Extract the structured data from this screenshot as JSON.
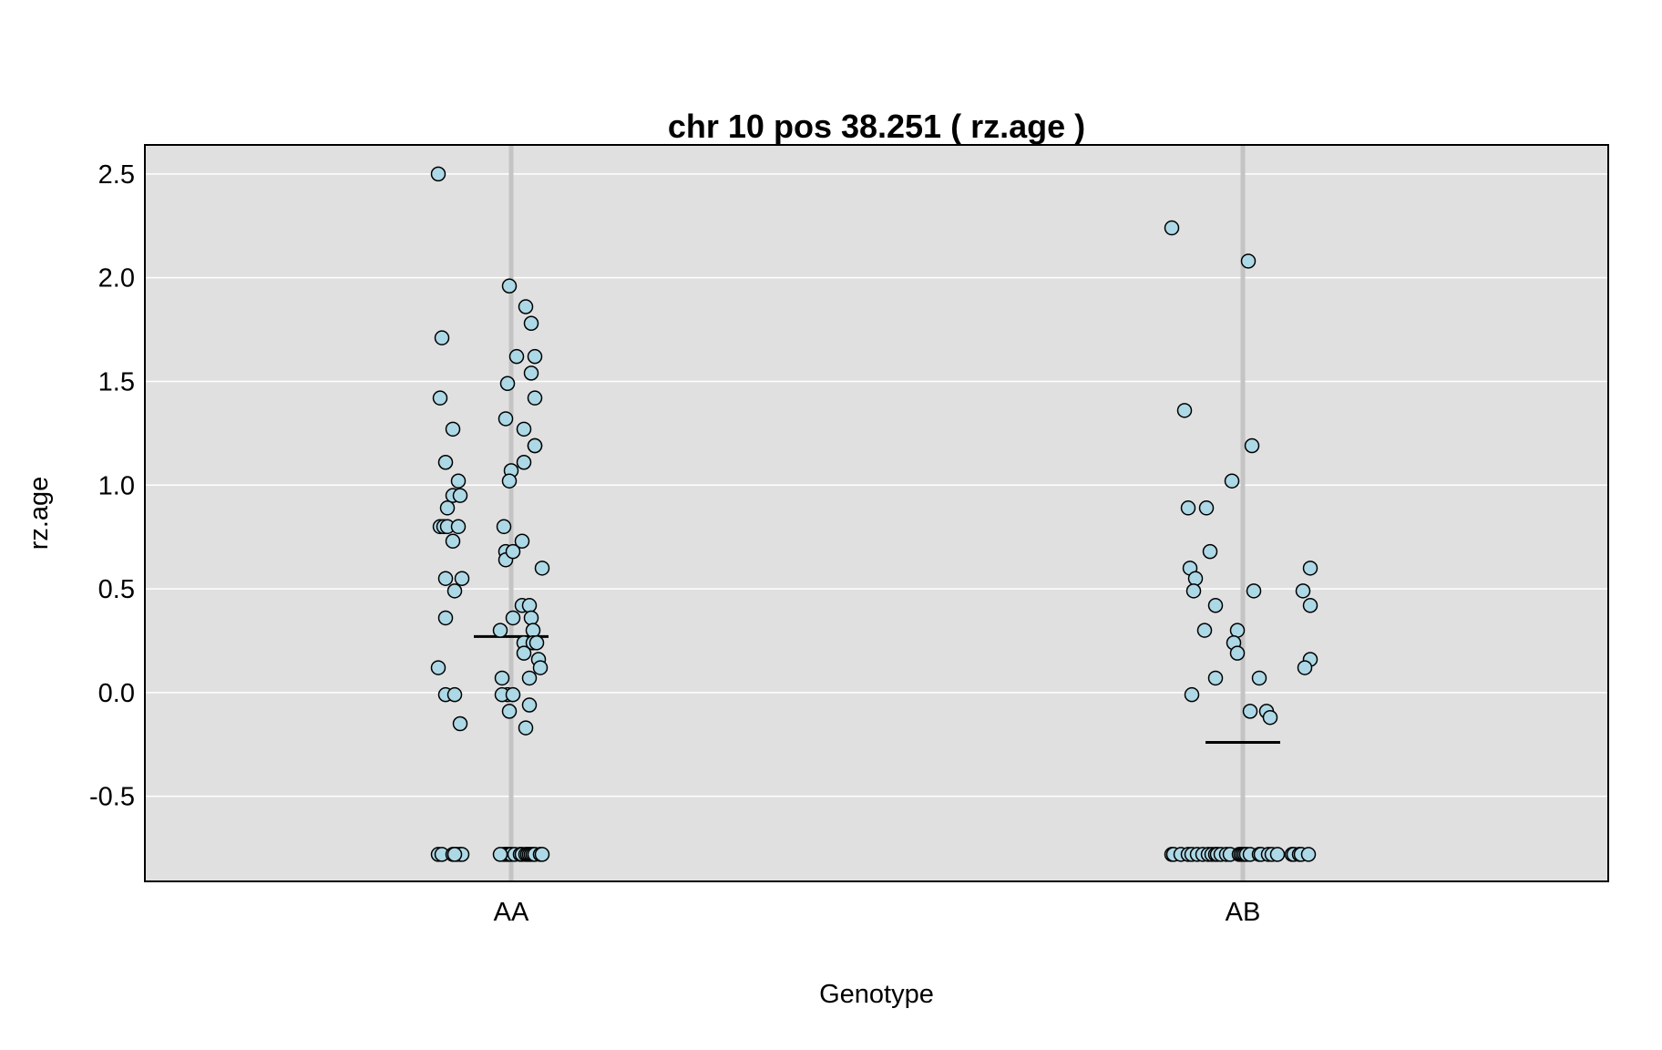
{
  "chart_data": {
    "type": "scatter",
    "title": "chr 10 pos 38.251 ( rz.age )",
    "xlabel": "Genotype",
    "ylabel": "rz.age",
    "categories": [
      "AA",
      "AB"
    ],
    "y_ticks": [
      -0.5,
      0.0,
      0.5,
      1.0,
      1.5,
      2.0,
      2.5
    ],
    "y_tick_labels": [
      "-0.5",
      "0.0",
      "0.5",
      "1.0",
      "1.5",
      "2.0",
      "2.5"
    ],
    "ylim": [
      -0.91,
      2.64
    ],
    "grid": true,
    "background": "#e0e0e0",
    "point_fill": "#add8e6",
    "point_stroke": "#000000",
    "groups": [
      {
        "category": "AA",
        "median": 0.27,
        "points": [
          {
            "x": -0.4,
            "y": 2.5
          },
          {
            "x": -0.38,
            "y": 1.71
          },
          {
            "x": -0.39,
            "y": 1.42
          },
          {
            "x": -0.32,
            "y": 1.27
          },
          {
            "x": -0.36,
            "y": 1.11
          },
          {
            "x": -0.29,
            "y": 1.02
          },
          {
            "x": -0.32,
            "y": 0.95
          },
          {
            "x": -0.28,
            "y": 0.95
          },
          {
            "x": -0.35,
            "y": 0.89
          },
          {
            "x": -0.39,
            "y": 0.8
          },
          {
            "x": -0.37,
            "y": 0.8
          },
          {
            "x": -0.35,
            "y": 0.8
          },
          {
            "x": -0.29,
            "y": 0.8
          },
          {
            "x": -0.32,
            "y": 0.73
          },
          {
            "x": -0.36,
            "y": 0.55
          },
          {
            "x": -0.27,
            "y": 0.55
          },
          {
            "x": -0.31,
            "y": 0.49
          },
          {
            "x": -0.36,
            "y": 0.36
          },
          {
            "x": -0.4,
            "y": 0.12
          },
          {
            "x": -0.36,
            "y": -0.01
          },
          {
            "x": -0.31,
            "y": -0.01
          },
          {
            "x": -0.28,
            "y": -0.15
          },
          {
            "x": -0.01,
            "y": 1.96
          },
          {
            "x": 0.03,
            "y": 1.62
          },
          {
            "x": -0.02,
            "y": 1.49
          },
          {
            "x": -0.03,
            "y": 1.32
          },
          {
            "x": 0.0,
            "y": 1.07
          },
          {
            "x": -0.01,
            "y": 1.02
          },
          {
            "x": -0.04,
            "y": 0.8
          },
          {
            "x": -0.03,
            "y": 0.68
          },
          {
            "x": -0.03,
            "y": 0.64
          },
          {
            "x": 0.01,
            "y": 0.68
          },
          {
            "x": -0.06,
            "y": 0.3
          },
          {
            "x": 0.01,
            "y": 0.36
          },
          {
            "x": -0.05,
            "y": 0.07
          },
          {
            "x": -0.02,
            "y": -0.01
          },
          {
            "x": -0.05,
            "y": -0.01
          },
          {
            "x": 0.01,
            "y": -0.01
          },
          {
            "x": -0.01,
            "y": -0.09
          },
          {
            "x": 0.08,
            "y": 1.86
          },
          {
            "x": 0.07,
            "y": 1.27
          },
          {
            "x": 0.07,
            "y": 1.11
          },
          {
            "x": 0.06,
            "y": 0.73
          },
          {
            "x": 0.06,
            "y": 0.42
          },
          {
            "x": 0.07,
            "y": 0.24
          },
          {
            "x": 0.07,
            "y": 0.19
          },
          {
            "x": 0.08,
            "y": -0.17
          },
          {
            "x": 0.11,
            "y": 1.78
          },
          {
            "x": 0.13,
            "y": 1.62
          },
          {
            "x": 0.11,
            "y": 1.54
          },
          {
            "x": 0.13,
            "y": 1.42
          },
          {
            "x": 0.13,
            "y": 1.19
          },
          {
            "x": 0.13,
            "y": 1.19
          },
          {
            "x": 0.1,
            "y": 0.42
          },
          {
            "x": 0.11,
            "y": 0.36
          },
          {
            "x": 0.12,
            "y": 0.3
          },
          {
            "x": 0.12,
            "y": 0.24
          },
          {
            "x": 0.14,
            "y": 0.24
          },
          {
            "x": 0.15,
            "y": 0.16
          },
          {
            "x": 0.17,
            "y": 0.6
          },
          {
            "x": 0.16,
            "y": 0.12
          },
          {
            "x": 0.1,
            "y": 0.07
          },
          {
            "x": 0.1,
            "y": -0.06
          },
          {
            "x": -0.4,
            "y": -0.78
          },
          {
            "x": -0.38,
            "y": -0.78
          },
          {
            "x": -0.32,
            "y": -0.78
          },
          {
            "x": -0.3,
            "y": -0.78
          },
          {
            "x": -0.28,
            "y": -0.78
          },
          {
            "x": -0.27,
            "y": -0.78
          },
          {
            "x": -0.04,
            "y": -0.78
          },
          {
            "x": -0.03,
            "y": -0.78
          },
          {
            "x": -0.02,
            "y": -0.78
          },
          {
            "x": -0.01,
            "y": -0.78
          },
          {
            "x": 0.0,
            "y": -0.78
          },
          {
            "x": 0.02,
            "y": -0.78
          },
          {
            "x": 0.05,
            "y": -0.78
          },
          {
            "x": 0.06,
            "y": -0.78
          },
          {
            "x": 0.08,
            "y": -0.78
          },
          {
            "x": 0.09,
            "y": -0.78
          },
          {
            "x": 0.1,
            "y": -0.78
          },
          {
            "x": 0.11,
            "y": -0.78
          },
          {
            "x": 0.12,
            "y": -0.78
          },
          {
            "x": 0.13,
            "y": -0.78
          },
          {
            "x": 0.16,
            "y": -0.78
          },
          {
            "x": 0.17,
            "y": -0.78
          },
          {
            "x": -0.31,
            "y": -0.78
          },
          {
            "x": -0.06,
            "y": -0.78
          }
        ]
      },
      {
        "category": "AB",
        "median": -0.24,
        "points": [
          {
            "x": -0.39,
            "y": 2.24
          },
          {
            "x": -0.32,
            "y": 1.36
          },
          {
            "x": -0.3,
            "y": 0.89
          },
          {
            "x": -0.2,
            "y": 0.89
          },
          {
            "x": -0.29,
            "y": 0.6
          },
          {
            "x": -0.26,
            "y": 0.55
          },
          {
            "x": -0.27,
            "y": 0.49
          },
          {
            "x": -0.18,
            "y": 0.68
          },
          {
            "x": -0.21,
            "y": 0.3
          },
          {
            "x": -0.28,
            "y": -0.01
          },
          {
            "x": -0.15,
            "y": 0.42
          },
          {
            "x": -0.15,
            "y": 0.07
          },
          {
            "x": -0.06,
            "y": 1.02
          },
          {
            "x": 0.03,
            "y": 2.08
          },
          {
            "x": 0.05,
            "y": 1.19
          },
          {
            "x": 0.06,
            "y": 0.49
          },
          {
            "x": -0.03,
            "y": 0.3
          },
          {
            "x": -0.05,
            "y": 0.24
          },
          {
            "x": -0.03,
            "y": 0.19
          },
          {
            "x": 0.09,
            "y": 0.07
          },
          {
            "x": 0.04,
            "y": -0.09
          },
          {
            "x": 0.13,
            "y": -0.09
          },
          {
            "x": 0.15,
            "y": -0.12
          },
          {
            "x": 0.33,
            "y": 0.49
          },
          {
            "x": 0.37,
            "y": 0.6
          },
          {
            "x": 0.37,
            "y": 0.42
          },
          {
            "x": 0.37,
            "y": 0.16
          },
          {
            "x": 0.34,
            "y": 0.12
          },
          {
            "x": -0.39,
            "y": -0.78
          },
          {
            "x": -0.38,
            "y": -0.78
          },
          {
            "x": -0.34,
            "y": -0.78
          },
          {
            "x": -0.3,
            "y": -0.78
          },
          {
            "x": -0.28,
            "y": -0.78
          },
          {
            "x": -0.25,
            "y": -0.78
          },
          {
            "x": -0.22,
            "y": -0.78
          },
          {
            "x": -0.19,
            "y": -0.78
          },
          {
            "x": -0.17,
            "y": -0.78
          },
          {
            "x": -0.15,
            "y": -0.78
          },
          {
            "x": -0.14,
            "y": -0.78
          },
          {
            "x": -0.12,
            "y": -0.78
          },
          {
            "x": -0.09,
            "y": -0.78
          },
          {
            "x": -0.07,
            "y": -0.78
          },
          {
            "x": -0.02,
            "y": -0.78
          },
          {
            "x": -0.01,
            "y": -0.78
          },
          {
            "x": 0.0,
            "y": -0.78
          },
          {
            "x": 0.01,
            "y": -0.78
          },
          {
            "x": 0.02,
            "y": -0.78
          },
          {
            "x": 0.04,
            "y": -0.78
          },
          {
            "x": 0.09,
            "y": -0.78
          },
          {
            "x": 0.1,
            "y": -0.78
          },
          {
            "x": 0.14,
            "y": -0.78
          },
          {
            "x": 0.16,
            "y": -0.78
          },
          {
            "x": 0.19,
            "y": -0.78
          },
          {
            "x": 0.27,
            "y": -0.78
          },
          {
            "x": 0.28,
            "y": -0.78
          },
          {
            "x": 0.31,
            "y": -0.78
          },
          {
            "x": 0.32,
            "y": -0.78
          },
          {
            "x": 0.36,
            "y": -0.78
          }
        ]
      }
    ]
  }
}
